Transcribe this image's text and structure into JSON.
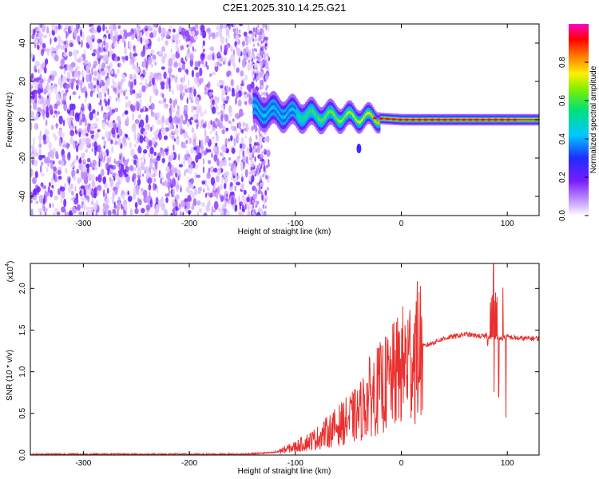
{
  "title": "C2E1.2025.310.14.25.G21",
  "chart_data": [
    {
      "type": "heatmap",
      "xlabel": "Height of straight line (km)",
      "ylabel": "Frequency (Hz)",
      "xlim": [
        -350,
        130
      ],
      "ylim": [
        -50,
        50
      ],
      "xticks": [
        -300,
        -200,
        -100,
        0,
        100
      ],
      "yticks": [
        -40,
        -20,
        0,
        20,
        40
      ],
      "colorbar": {
        "label": "Normalized spectral amplitude",
        "ticks": [
          "0.0",
          "0.2",
          "0.4",
          "0.6",
          "0.8"
        ],
        "range": [
          0,
          1
        ],
        "colormap": "rainbow (white-violet-blue-cyan-green-yellow-red-magenta)"
      },
      "description_points": [
        {
          "height_km": -350,
          "freq_center_hz": 0,
          "note": "diffuse noise spanning full band, amplitude ~0.1-0.2"
        },
        {
          "height_km": -140,
          "freq_center_hz": 5,
          "note": "onset of coherent signal, amplitude ~0.4-0.5"
        },
        {
          "height_km": -80,
          "freq_center_hz": 2,
          "note": "band ~+/-8 Hz, amplitude ~0.5"
        },
        {
          "height_km": -30,
          "freq_center_hz": 1,
          "note": "narrowing, amplitude ~0.8"
        },
        {
          "height_km": 0,
          "freq_center_hz": 0,
          "note": "narrow line, amplitude ~0.9"
        },
        {
          "height_km": 130,
          "freq_center_hz": 0,
          "note": "narrow line, amplitude ~0.9-1.0"
        }
      ]
    },
    {
      "type": "line",
      "xlabel": "Height of straight line (km)",
      "ylabel": "SNR (10 * v/v)",
      "y_multiplier": "(x10^4)",
      "xlim": [
        -350,
        130
      ],
      "ylim": [
        0,
        2.3
      ],
      "xticks": [
        -300,
        -200,
        -100,
        0,
        100
      ],
      "yticks": [
        "0.0",
        "0.5",
        "1.0",
        "1.5",
        "2.0"
      ],
      "color": "#e8302e",
      "series": [
        {
          "x": [
            -350,
            -300,
            -250,
            -200,
            -150,
            -120,
            -100,
            -80,
            -60,
            -40,
            -30,
            -20,
            -10,
            0,
            20,
            40,
            60,
            80,
            85,
            90,
            95,
            100,
            110,
            130
          ],
          "y": [
            0.01,
            0.01,
            0.01,
            0.01,
            0.01,
            0.03,
            0.1,
            0.2,
            0.35,
            0.5,
            0.7,
            0.8,
            0.9,
            1.05,
            1.3,
            1.4,
            1.45,
            1.42,
            1.4,
            1.4,
            1.4,
            1.42,
            1.4,
            1.4
          ]
        }
      ],
      "spikes": [
        {
          "x": 87,
          "y": 2.35
        },
        {
          "x": 92,
          "y": 0.7
        },
        {
          "x": 99,
          "y": 0.45
        }
      ]
    }
  ]
}
